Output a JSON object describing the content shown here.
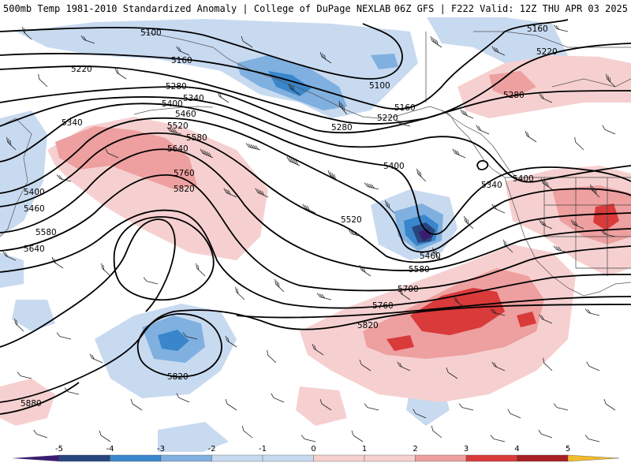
{
  "header": {
    "left": "500mb Temp 1981-2010 Standardized Anomaly | College of DuPage NEXLAB",
    "right": "06Z GFS | F222 Valid: 12Z THU APR 03 2025"
  },
  "colors": {
    "m5": "#3a1e6e",
    "m4": "#27457e",
    "m3": "#3a86cc",
    "m2": "#7fb0e0",
    "m1": "#c8daf0",
    "p1": "#f6d0d0",
    "p2": "#ee9f9f",
    "p3": "#d93a3a",
    "p4": "#a81f24",
    "p5": "#6b0f12",
    "p6": "#f2bb2a"
  },
  "contour_labels": [
    {
      "id": "5100a",
      "text": "5100"
    },
    {
      "id": "5100b",
      "text": "5100"
    },
    {
      "id": "5160a",
      "text": "5160"
    },
    {
      "id": "5160b",
      "text": "5160"
    },
    {
      "id": "5160c",
      "text": "5160"
    },
    {
      "id": "5220a",
      "text": "5220"
    },
    {
      "id": "5220b",
      "text": "5220"
    },
    {
      "id": "5220c",
      "text": "5220"
    },
    {
      "id": "5280a",
      "text": "5280"
    },
    {
      "id": "5280b",
      "text": "5280"
    },
    {
      "id": "5280c",
      "text": "5280"
    },
    {
      "id": "5340a",
      "text": "5340"
    },
    {
      "id": "5340b",
      "text": "5340"
    },
    {
      "id": "5340c",
      "text": "5340"
    },
    {
      "id": "5400a",
      "text": "5400"
    },
    {
      "id": "5400b",
      "text": "5400"
    },
    {
      "id": "5400c",
      "text": "5400"
    },
    {
      "id": "5400d",
      "text": "5400"
    },
    {
      "id": "5460a",
      "text": "5460"
    },
    {
      "id": "5460b",
      "text": "5460"
    },
    {
      "id": "5460c",
      "text": "5460"
    },
    {
      "id": "5520a",
      "text": "5520"
    },
    {
      "id": "5520b",
      "text": "5520"
    },
    {
      "id": "5580a",
      "text": "5580"
    },
    {
      "id": "5580b",
      "text": "5580"
    },
    {
      "id": "5580c",
      "text": "5580"
    },
    {
      "id": "5640a",
      "text": "5640"
    },
    {
      "id": "5640b",
      "text": "5640"
    },
    {
      "id": "5700a",
      "text": "5700"
    },
    {
      "id": "5760a",
      "text": "5760"
    },
    {
      "id": "5760b",
      "text": "5760"
    },
    {
      "id": "5820a",
      "text": "5820"
    },
    {
      "id": "5820b",
      "text": "5820"
    },
    {
      "id": "5820c",
      "text": "5820"
    },
    {
      "id": "5880a",
      "text": "5880"
    }
  ],
  "colorbar": {
    "ticks": [
      "-5",
      "-4",
      "-3",
      "-2",
      "-1",
      "0",
      "1",
      "2",
      "3",
      "4",
      "5"
    ]
  }
}
